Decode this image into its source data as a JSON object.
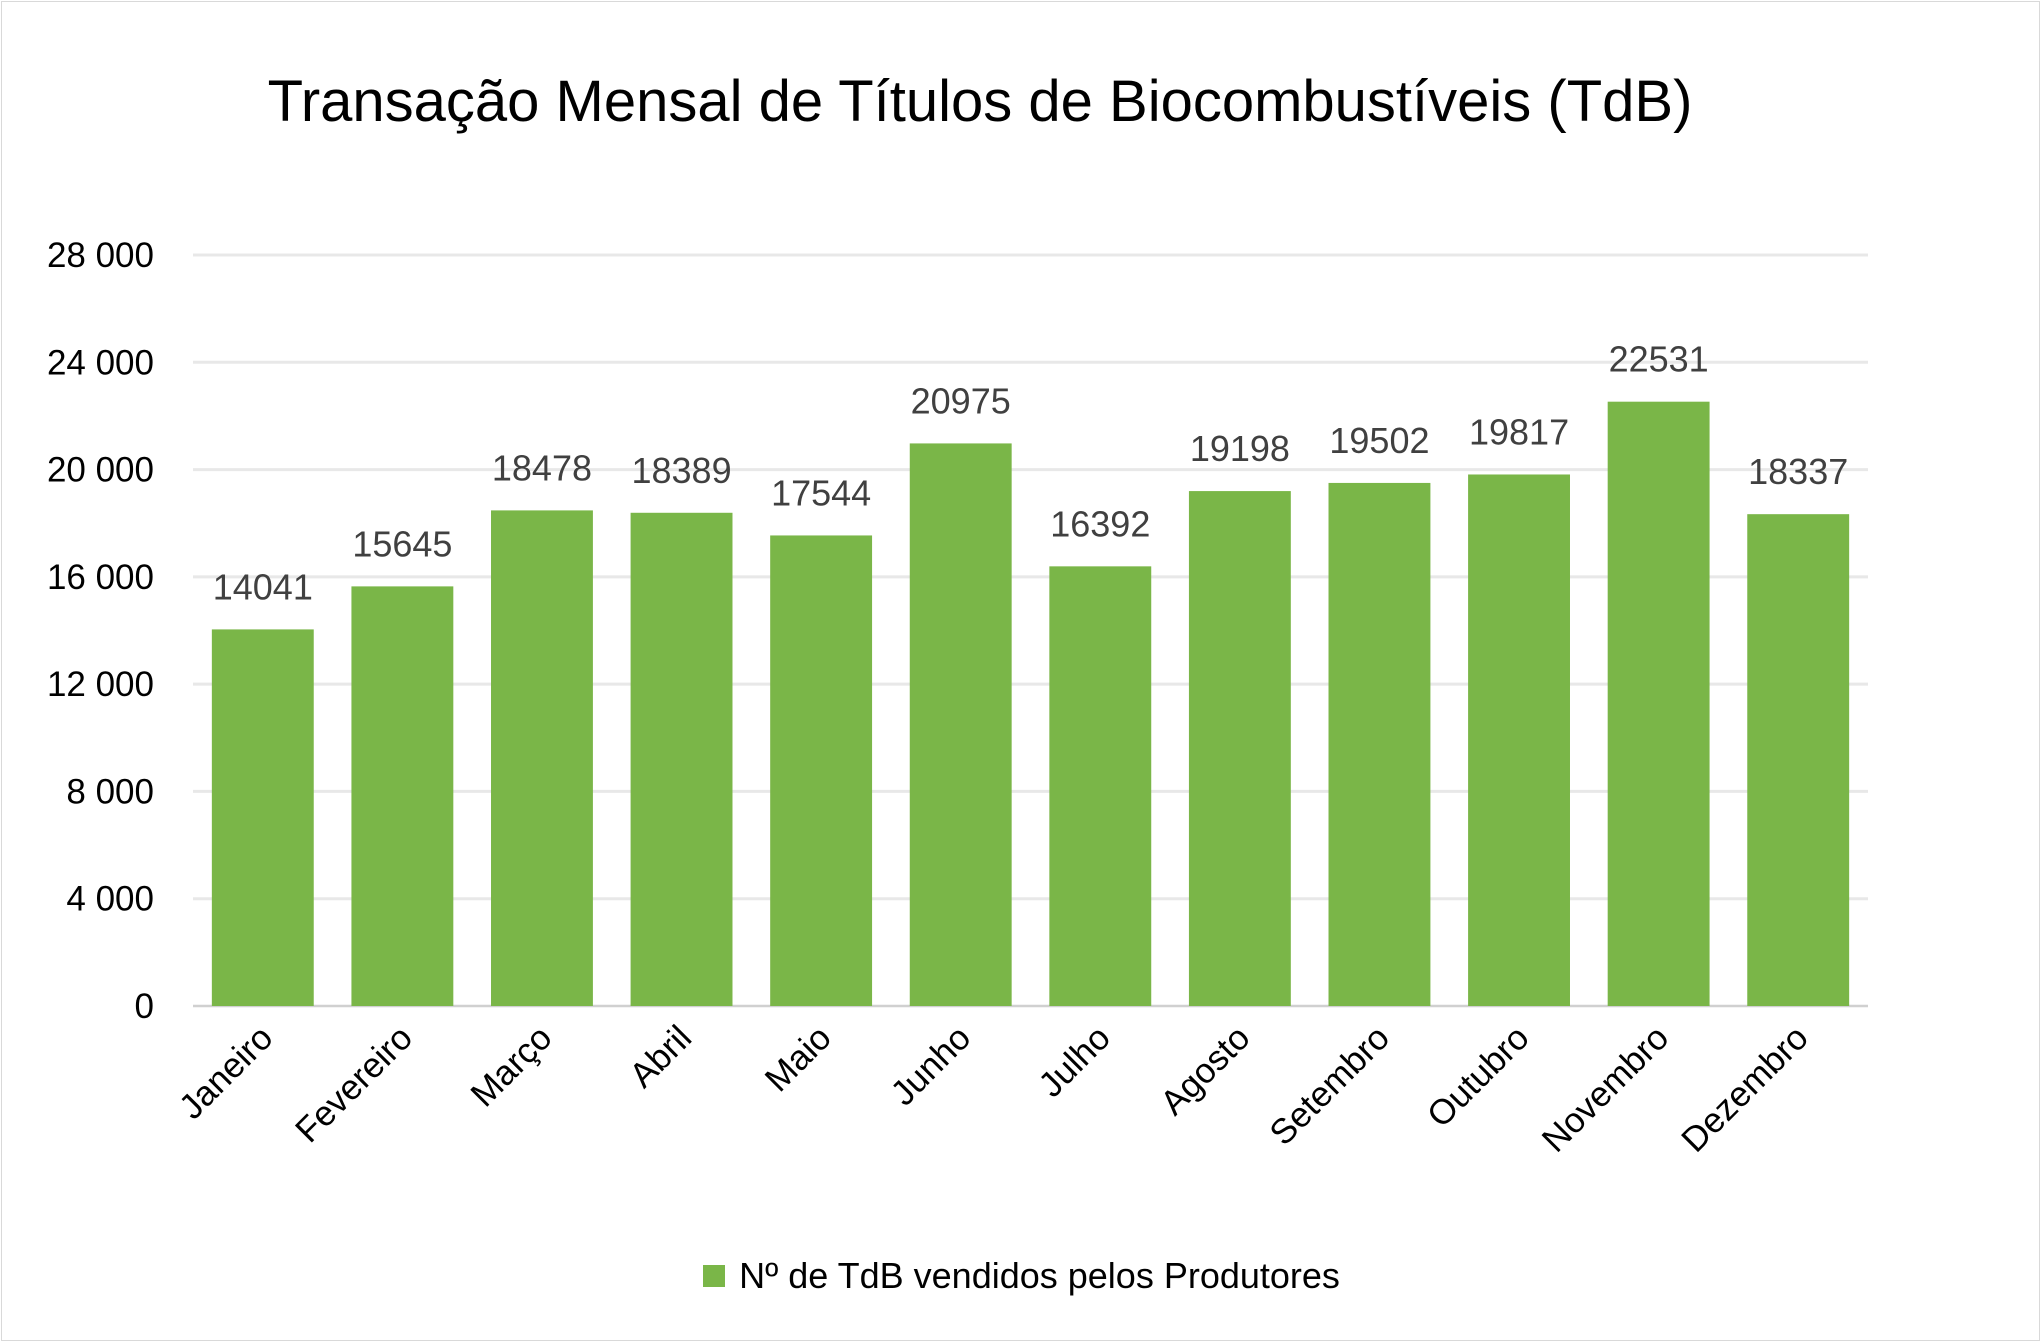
{
  "chart_data": {
    "type": "bar",
    "title": "Transação Mensal de Títulos de Biocombustíveis (TdB)",
    "xlabel": "",
    "ylabel": "",
    "categories": [
      "Janeiro",
      "Fevereiro",
      "Março",
      "Abril",
      "Maio",
      "Junho",
      "Julho",
      "Agosto",
      "Setembro",
      "Outubro",
      "Novembro",
      "Dezembro"
    ],
    "series": [
      {
        "name": "Nº de TdB vendidos pelos Produtores",
        "values": [
          14041,
          15645,
          18478,
          18389,
          17544,
          20975,
          16392,
          19198,
          19502,
          19817,
          22531,
          18337
        ],
        "color": "#7ab648"
      }
    ],
    "ylim": [
      0,
      28000
    ],
    "yticks": [
      0,
      4000,
      8000,
      12000,
      16000,
      20000,
      24000,
      28000
    ],
    "ytick_labels": [
      "0",
      "4 000",
      "8 000",
      "12 000",
      "16 000",
      "20 000",
      "24 000",
      "28 000"
    ],
    "data_labels": true,
    "grid": true,
    "legend_position": "bottom",
    "gridline_color": "#e8e8e8",
    "axis_color": "#d0d0d0"
  }
}
